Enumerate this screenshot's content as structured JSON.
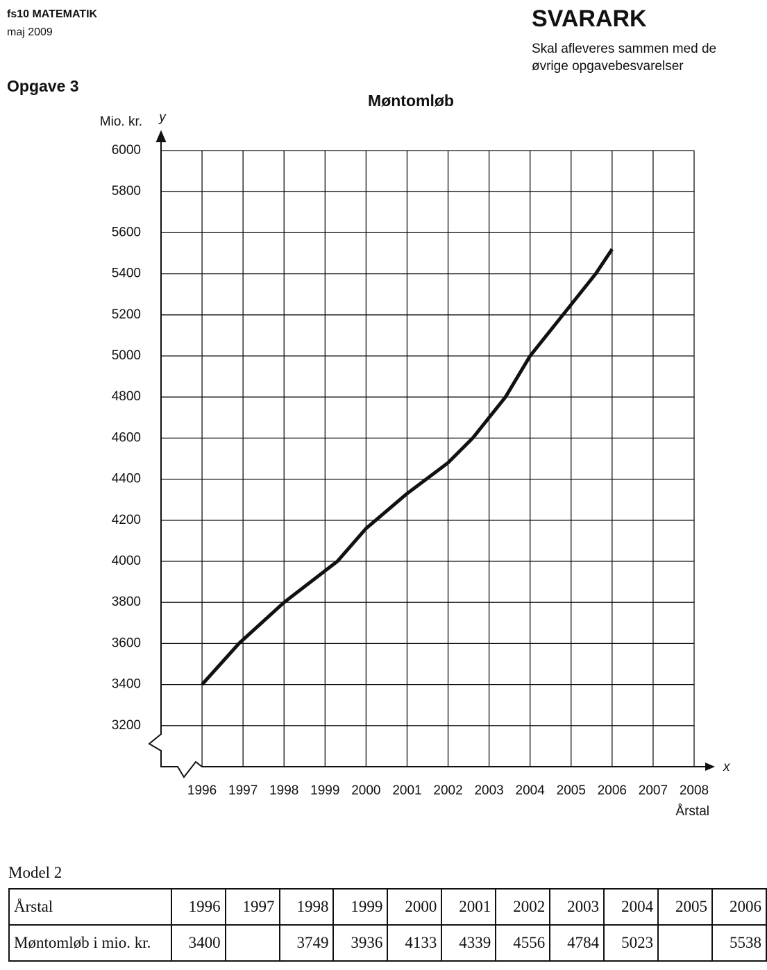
{
  "header": {
    "subject": "fs10 MATEMATIK",
    "date": "maj 2009",
    "title": "SVARARK",
    "note_line1": "Skal afleveres sammen med de",
    "note_line2": "øvrige opgavebesvarelser",
    "task": "Opgave 3"
  },
  "chart_data": {
    "type": "line",
    "title": "Møntomløb",
    "y_label": "Mio. kr.",
    "y_axis_name": "y",
    "x_label": "Årstal",
    "x_axis_name": "x",
    "x": [
      1996,
      1996.9,
      1998,
      1999.3,
      2000,
      2001,
      2002,
      2002.6,
      2003.4,
      2004,
      2005,
      2005.6,
      2006
    ],
    "values": [
      3400,
      3600,
      3800,
      4000,
      4160,
      4330,
      4480,
      4600,
      4800,
      5000,
      5250,
      5400,
      5520
    ],
    "color": "#111111",
    "xlim": [
      1995,
      2008
    ],
    "xticks": [
      1996,
      1997,
      1998,
      1999,
      2000,
      2001,
      2002,
      2003,
      2004,
      2005,
      2006,
      2007,
      2008
    ],
    "ylim": [
      3000,
      6000
    ],
    "yticks": [
      3200,
      3400,
      3600,
      3800,
      4000,
      4200,
      4400,
      4600,
      4800,
      5000,
      5200,
      5400,
      5600,
      5800,
      6000
    ],
    "grid": true
  },
  "table": {
    "caption": "Model 2",
    "rows": [
      [
        "Årstal",
        1996,
        1997,
        1998,
        1999,
        2000,
        2001,
        2002,
        2003,
        2004,
        2005,
        2006
      ],
      [
        "Møntomløb i mio. kr.",
        3400,
        null,
        3749,
        3936,
        4133,
        4339,
        4556,
        4784,
        5023,
        null,
        5538
      ]
    ]
  }
}
